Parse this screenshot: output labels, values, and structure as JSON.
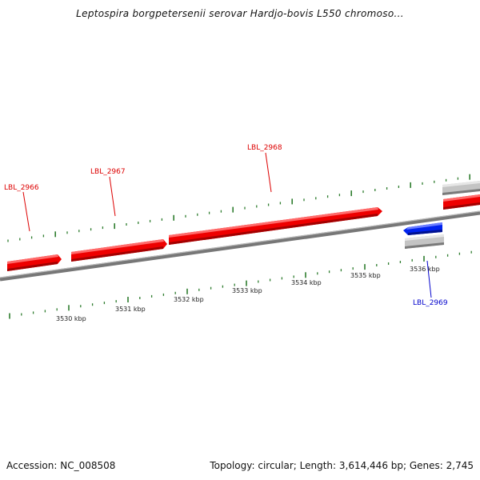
{
  "title": "Leptospira borgpetersenii serovar Hardjo-bovis L550 chromoso...",
  "footer": {
    "accession": "Accession: NC_008508",
    "summary": "Topology: circular; Length: 3,614,446 bp; Genes: 2,745"
  },
  "colors": {
    "forward_gene": "#ee0000",
    "reverse_gene": "#0022ee",
    "other_feature": "#c0c0c0",
    "backbone": "#888888",
    "tick": "#2e7d2e"
  },
  "scale_labels": [
    "3530 kbp",
    "3531 kbp",
    "3532 kbp",
    "3533 kbp",
    "3534 kbp",
    "3535 kbp",
    "3536 kbp"
  ],
  "genes": [
    {
      "name": "LBL_2966",
      "strand": "forward"
    },
    {
      "name": "LBL_2967",
      "strand": "forward"
    },
    {
      "name": "LBL_2968",
      "strand": "forward"
    },
    {
      "name": "LBL_2969",
      "strand": "reverse"
    }
  ]
}
